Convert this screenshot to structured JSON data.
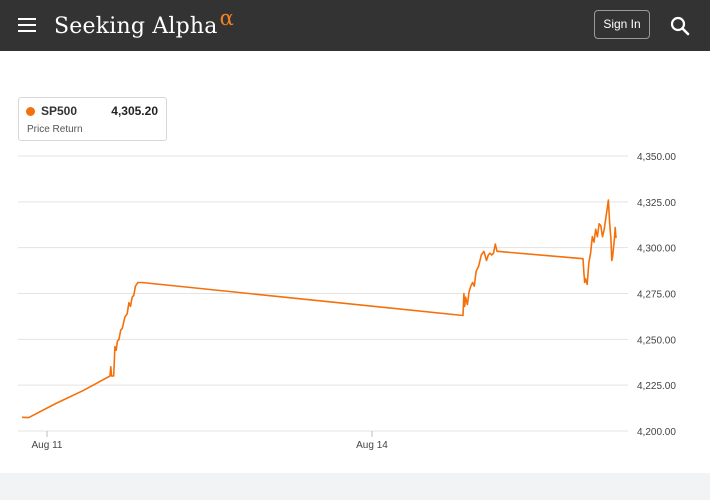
{
  "header": {
    "menu_icon": "hamburger-menu-icon",
    "logo_text": "Seeking Alpha",
    "logo_symbol": "α",
    "sign_in_label": "Sign In",
    "search_icon": "search-icon",
    "accent_color": "#f0821e",
    "bar_color": "#333333"
  },
  "legend": {
    "symbol": "SP500",
    "value": "4,305.20",
    "subtitle": "Price Return",
    "color": "#f5700a"
  },
  "chart_data": {
    "type": "line",
    "title": "",
    "xlabel": "",
    "ylabel": "",
    "ylim": [
      4200,
      4350
    ],
    "y_ticks": [
      "4,200.00",
      "4,225.00",
      "4,250.00",
      "4,275.00",
      "4,300.00",
      "4,325.00",
      "4,350.00"
    ],
    "y_tick_values": [
      4200,
      4225,
      4250,
      4275,
      4300,
      4325,
      4350
    ],
    "x_ticks": [
      "Aug 11",
      "Aug 14"
    ],
    "x_tick_values": [
      "2023-08-11 00:00",
      "2023-08-14 00:00"
    ],
    "grid": true,
    "series": [
      {
        "name": "SP500",
        "color": "#f5700a",
        "points": [
          [
            "2023-08-10 09:30",
            4207.5
          ],
          [
            "2023-08-10 10:00",
            4207.3
          ],
          [
            "2023-08-10 12:00",
            4215
          ],
          [
            "2023-08-10 14:00",
            4222
          ],
          [
            "2023-08-10 15:30",
            4228
          ],
          [
            "2023-08-10 16:00",
            4230
          ],
          [
            "2023-08-11 09:30",
            4230
          ],
          [
            "2023-08-11 09:40",
            4235
          ],
          [
            "2023-08-11 09:50",
            4230
          ],
          [
            "2023-08-11 10:15",
            4230
          ],
          [
            "2023-08-11 10:30",
            4246
          ],
          [
            "2023-08-11 10:45",
            4244
          ],
          [
            "2023-08-11 11:00",
            4249
          ],
          [
            "2023-08-11 11:20",
            4250
          ],
          [
            "2023-08-11 11:40",
            4255
          ],
          [
            "2023-08-11 12:00",
            4256
          ],
          [
            "2023-08-11 12:30",
            4262
          ],
          [
            "2023-08-11 13:00",
            4264
          ],
          [
            "2023-08-11 13:20",
            4270
          ],
          [
            "2023-08-11 13:40",
            4268
          ],
          [
            "2023-08-11 14:00",
            4273
          ],
          [
            "2023-08-11 14:20",
            4274
          ],
          [
            "2023-08-11 14:40",
            4279
          ],
          [
            "2023-08-11 15:10",
            4281
          ],
          [
            "2023-08-11 16:00",
            4281
          ],
          [
            "2023-08-14 16:00",
            4263
          ],
          [
            "2023-08-15 09:30",
            4263
          ],
          [
            "2023-08-15 09:40",
            4275
          ],
          [
            "2023-08-15 09:50",
            4268
          ],
          [
            "2023-08-15 10:00",
            4273
          ],
          [
            "2023-08-15 10:20",
            4269
          ],
          [
            "2023-08-15 10:40",
            4276
          ],
          [
            "2023-08-15 11:00",
            4279
          ],
          [
            "2023-08-15 11:20",
            4281
          ],
          [
            "2023-08-15 11:40",
            4279
          ],
          [
            "2023-08-15 12:00",
            4287
          ],
          [
            "2023-08-15 12:30",
            4290
          ],
          [
            "2023-08-15 13:00",
            4296
          ],
          [
            "2023-08-15 13:30",
            4298
          ],
          [
            "2023-08-15 14:00",
            4293
          ],
          [
            "2023-08-15 14:20",
            4296
          ],
          [
            "2023-08-15 14:40",
            4297
          ],
          [
            "2023-08-15 15:00",
            4296
          ],
          [
            "2023-08-15 15:20",
            4297
          ],
          [
            "2023-08-15 15:40",
            4302
          ],
          [
            "2023-08-15 16:00",
            4298
          ],
          [
            "2023-08-16 16:00",
            4294
          ],
          [
            "2023-08-17 09:30",
            4294
          ],
          [
            "2023-08-17 09:40",
            4287
          ],
          [
            "2023-08-17 09:50",
            4281
          ],
          [
            "2023-08-17 10:00",
            4283
          ],
          [
            "2023-08-17 10:20",
            4280
          ],
          [
            "2023-08-17 10:40",
            4292
          ],
          [
            "2023-08-17 11:00",
            4297
          ],
          [
            "2023-08-17 11:20",
            4306
          ],
          [
            "2023-08-17 11:40",
            4303
          ],
          [
            "2023-08-17 12:00",
            4310
          ],
          [
            "2023-08-17 12:20",
            4306
          ],
          [
            "2023-08-17 12:40",
            4313
          ],
          [
            "2023-08-17 13:00",
            4312
          ],
          [
            "2023-08-17 13:20",
            4306
          ],
          [
            "2023-08-17 13:40",
            4310
          ],
          [
            "2023-08-17 14:00",
            4316
          ],
          [
            "2023-08-17 14:15",
            4321
          ],
          [
            "2023-08-17 14:30",
            4326
          ],
          [
            "2023-08-17 14:45",
            4313
          ],
          [
            "2023-08-17 15:00",
            4305
          ],
          [
            "2023-08-17 15:10",
            4293
          ],
          [
            "2023-08-17 15:20",
            4295
          ],
          [
            "2023-08-17 15:30",
            4300
          ],
          [
            "2023-08-17 15:40",
            4304
          ],
          [
            "2023-08-17 15:50",
            4311
          ],
          [
            "2023-08-17 16:00",
            4305.2
          ]
        ]
      }
    ]
  }
}
